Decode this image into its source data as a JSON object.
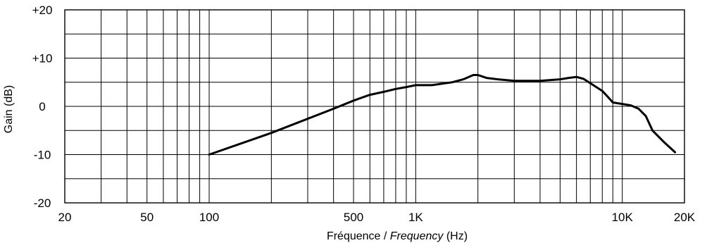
{
  "chart_data": {
    "type": "line",
    "title": "",
    "xlabel_parts": [
      "Fréquence / ",
      "Frequency",
      " (Hz)"
    ],
    "ylabel": "Gain (dB)",
    "x_scale": "log",
    "xlim": [
      20,
      20000
    ],
    "ylim": [
      -20,
      20
    ],
    "grid": true,
    "x_ticks": [
      {
        "value": 20,
        "label": "20"
      },
      {
        "value": 50,
        "label": "50"
      },
      {
        "value": 100,
        "label": "100"
      },
      {
        "value": 500,
        "label": "500"
      },
      {
        "value": 1000,
        "label": "1K"
      },
      {
        "value": 10000,
        "label": "10K"
      },
      {
        "value": 20000,
        "label": "20K"
      }
    ],
    "y_ticks": [
      {
        "value": 20,
        "label": "+20"
      },
      {
        "value": 10,
        "label": "+10"
      },
      {
        "value": 0,
        "label": "0"
      },
      {
        "value": -10,
        "label": "-10"
      },
      {
        "value": -20,
        "label": "-20"
      }
    ],
    "series": [
      {
        "color": "#000000",
        "x": [
          100,
          200,
          400,
          500,
          600,
          700,
          800,
          900,
          1000,
          1200,
          1500,
          1700,
          1900,
          2000,
          2200,
          2500,
          3000,
          4000,
          5000,
          5500,
          6000,
          6500,
          7000,
          8000,
          8500,
          9000,
          10000,
          11000,
          12000,
          13000,
          14000,
          16000,
          18000
        ],
        "y": [
          -10,
          -5.5,
          -0.5,
          1.2,
          2.4,
          3.0,
          3.6,
          4.0,
          4.4,
          4.4,
          5.0,
          5.6,
          6.5,
          6.5,
          5.9,
          5.6,
          5.3,
          5.3,
          5.6,
          5.9,
          6.1,
          5.7,
          4.8,
          3.2,
          2.0,
          0.8,
          0.5,
          0.2,
          -0.5,
          -2.0,
          -5.0,
          -7.5,
          -9.5
        ]
      }
    ]
  }
}
